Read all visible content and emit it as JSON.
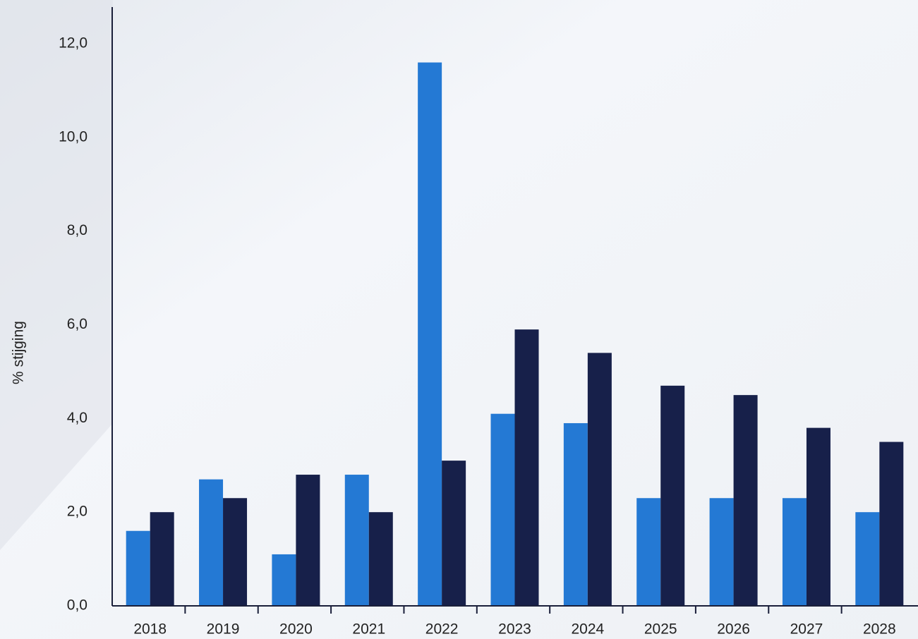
{
  "chart_data": {
    "type": "bar",
    "y_label": "% stijging",
    "categories": [
      "2018",
      "2019",
      "2020",
      "2021",
      "2022",
      "2023",
      "2024",
      "2025",
      "2026",
      "2027",
      "2028"
    ],
    "series": [
      {
        "color": "#2479d4",
        "values": [
          1.6,
          2.7,
          1.1,
          2.8,
          11.6,
          4.1,
          3.9,
          2.3,
          2.3,
          2.3,
          2.0
        ]
      },
      {
        "color": "#17204a",
        "values": [
          2.0,
          2.3,
          2.8,
          2.0,
          3.1,
          5.9,
          5.4,
          4.7,
          4.5,
          3.8,
          3.5
        ]
      }
    ],
    "ylim": [
      0,
      12
    ],
    "yticks": [
      {
        "value": 0,
        "label": "0,0"
      },
      {
        "value": 2,
        "label": "2,0"
      },
      {
        "value": 4,
        "label": "4,0"
      },
      {
        "value": 6,
        "label": "6,0"
      },
      {
        "value": 8,
        "label": "8,0"
      },
      {
        "value": 10,
        "label": "10,0"
      },
      {
        "value": 12,
        "label": "12,0"
      }
    ],
    "grid": false
  }
}
